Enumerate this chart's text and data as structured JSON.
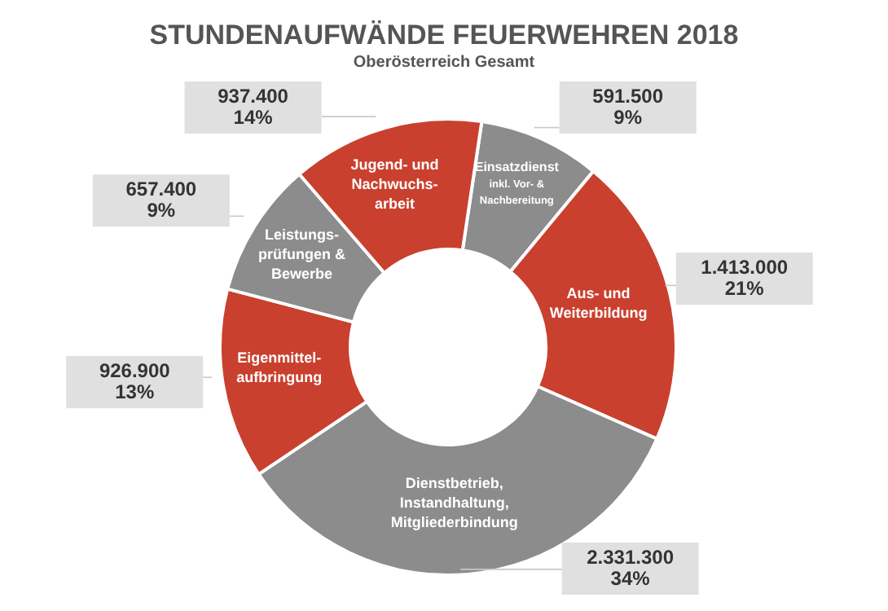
{
  "chart_data": {
    "type": "donut",
    "title": "STUNDENAUFWÄNDE FEUERWEHREN 2018",
    "subtitle": "Oberösterreich Gesamt",
    "categories": [
      "Einsatzdienst\ninkl. Vor- &\nNachbereitung",
      "Aus- und\nWeiterbildung",
      "Dienstbetrieb,\nInstandhaltung,\nMitgliederbindung",
      "Eigenmittel-\naufbringung",
      "Leistungs-\nprüfungen &\nBewerbe",
      "Jugend- und\nNachwuchs-\narbeit"
    ],
    "values": [
      591500,
      1413000,
      2331300,
      926900,
      657400,
      937400
    ],
    "value_labels": [
      "591.500\n9%",
      "1.413.000\n21%",
      "2.331.300\n34%",
      "926.900\n13%",
      "657.400\n9%",
      "937.400\n14%"
    ],
    "colors": [
      "#8c8c8c",
      "#c9402e",
      "#8c8c8c",
      "#c9402e",
      "#8c8c8c",
      "#c9402e"
    ]
  }
}
